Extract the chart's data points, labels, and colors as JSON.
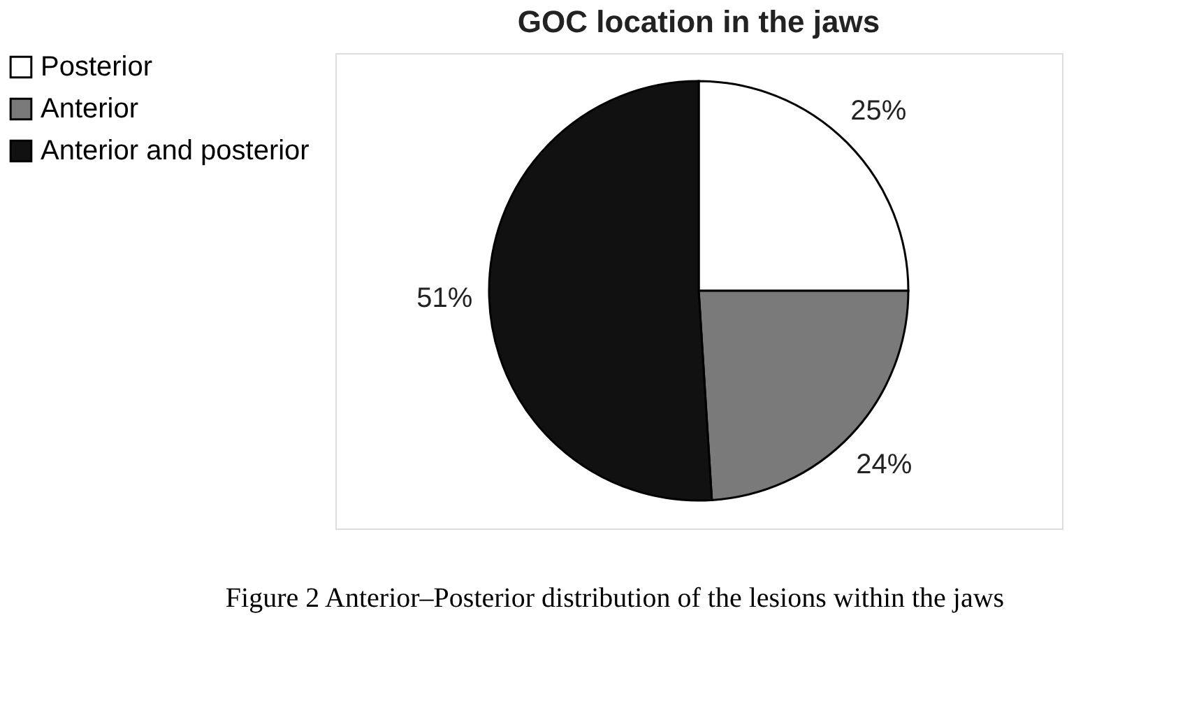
{
  "chart_data": {
    "type": "pie",
    "title": "GOC location in the jaws",
    "categories": [
      "Posterior",
      "Anterior",
      "Anterior and posterior"
    ],
    "values": [
      25,
      24,
      51
    ],
    "colors": [
      "#ffffff",
      "#7a7a7a",
      "#111111"
    ],
    "value_labels": [
      "25%",
      "24%",
      "51%"
    ],
    "legend": "left",
    "annotations": [
      "Figure 2 Anterior–Posterior distribution of the lesions within the jaws"
    ]
  }
}
